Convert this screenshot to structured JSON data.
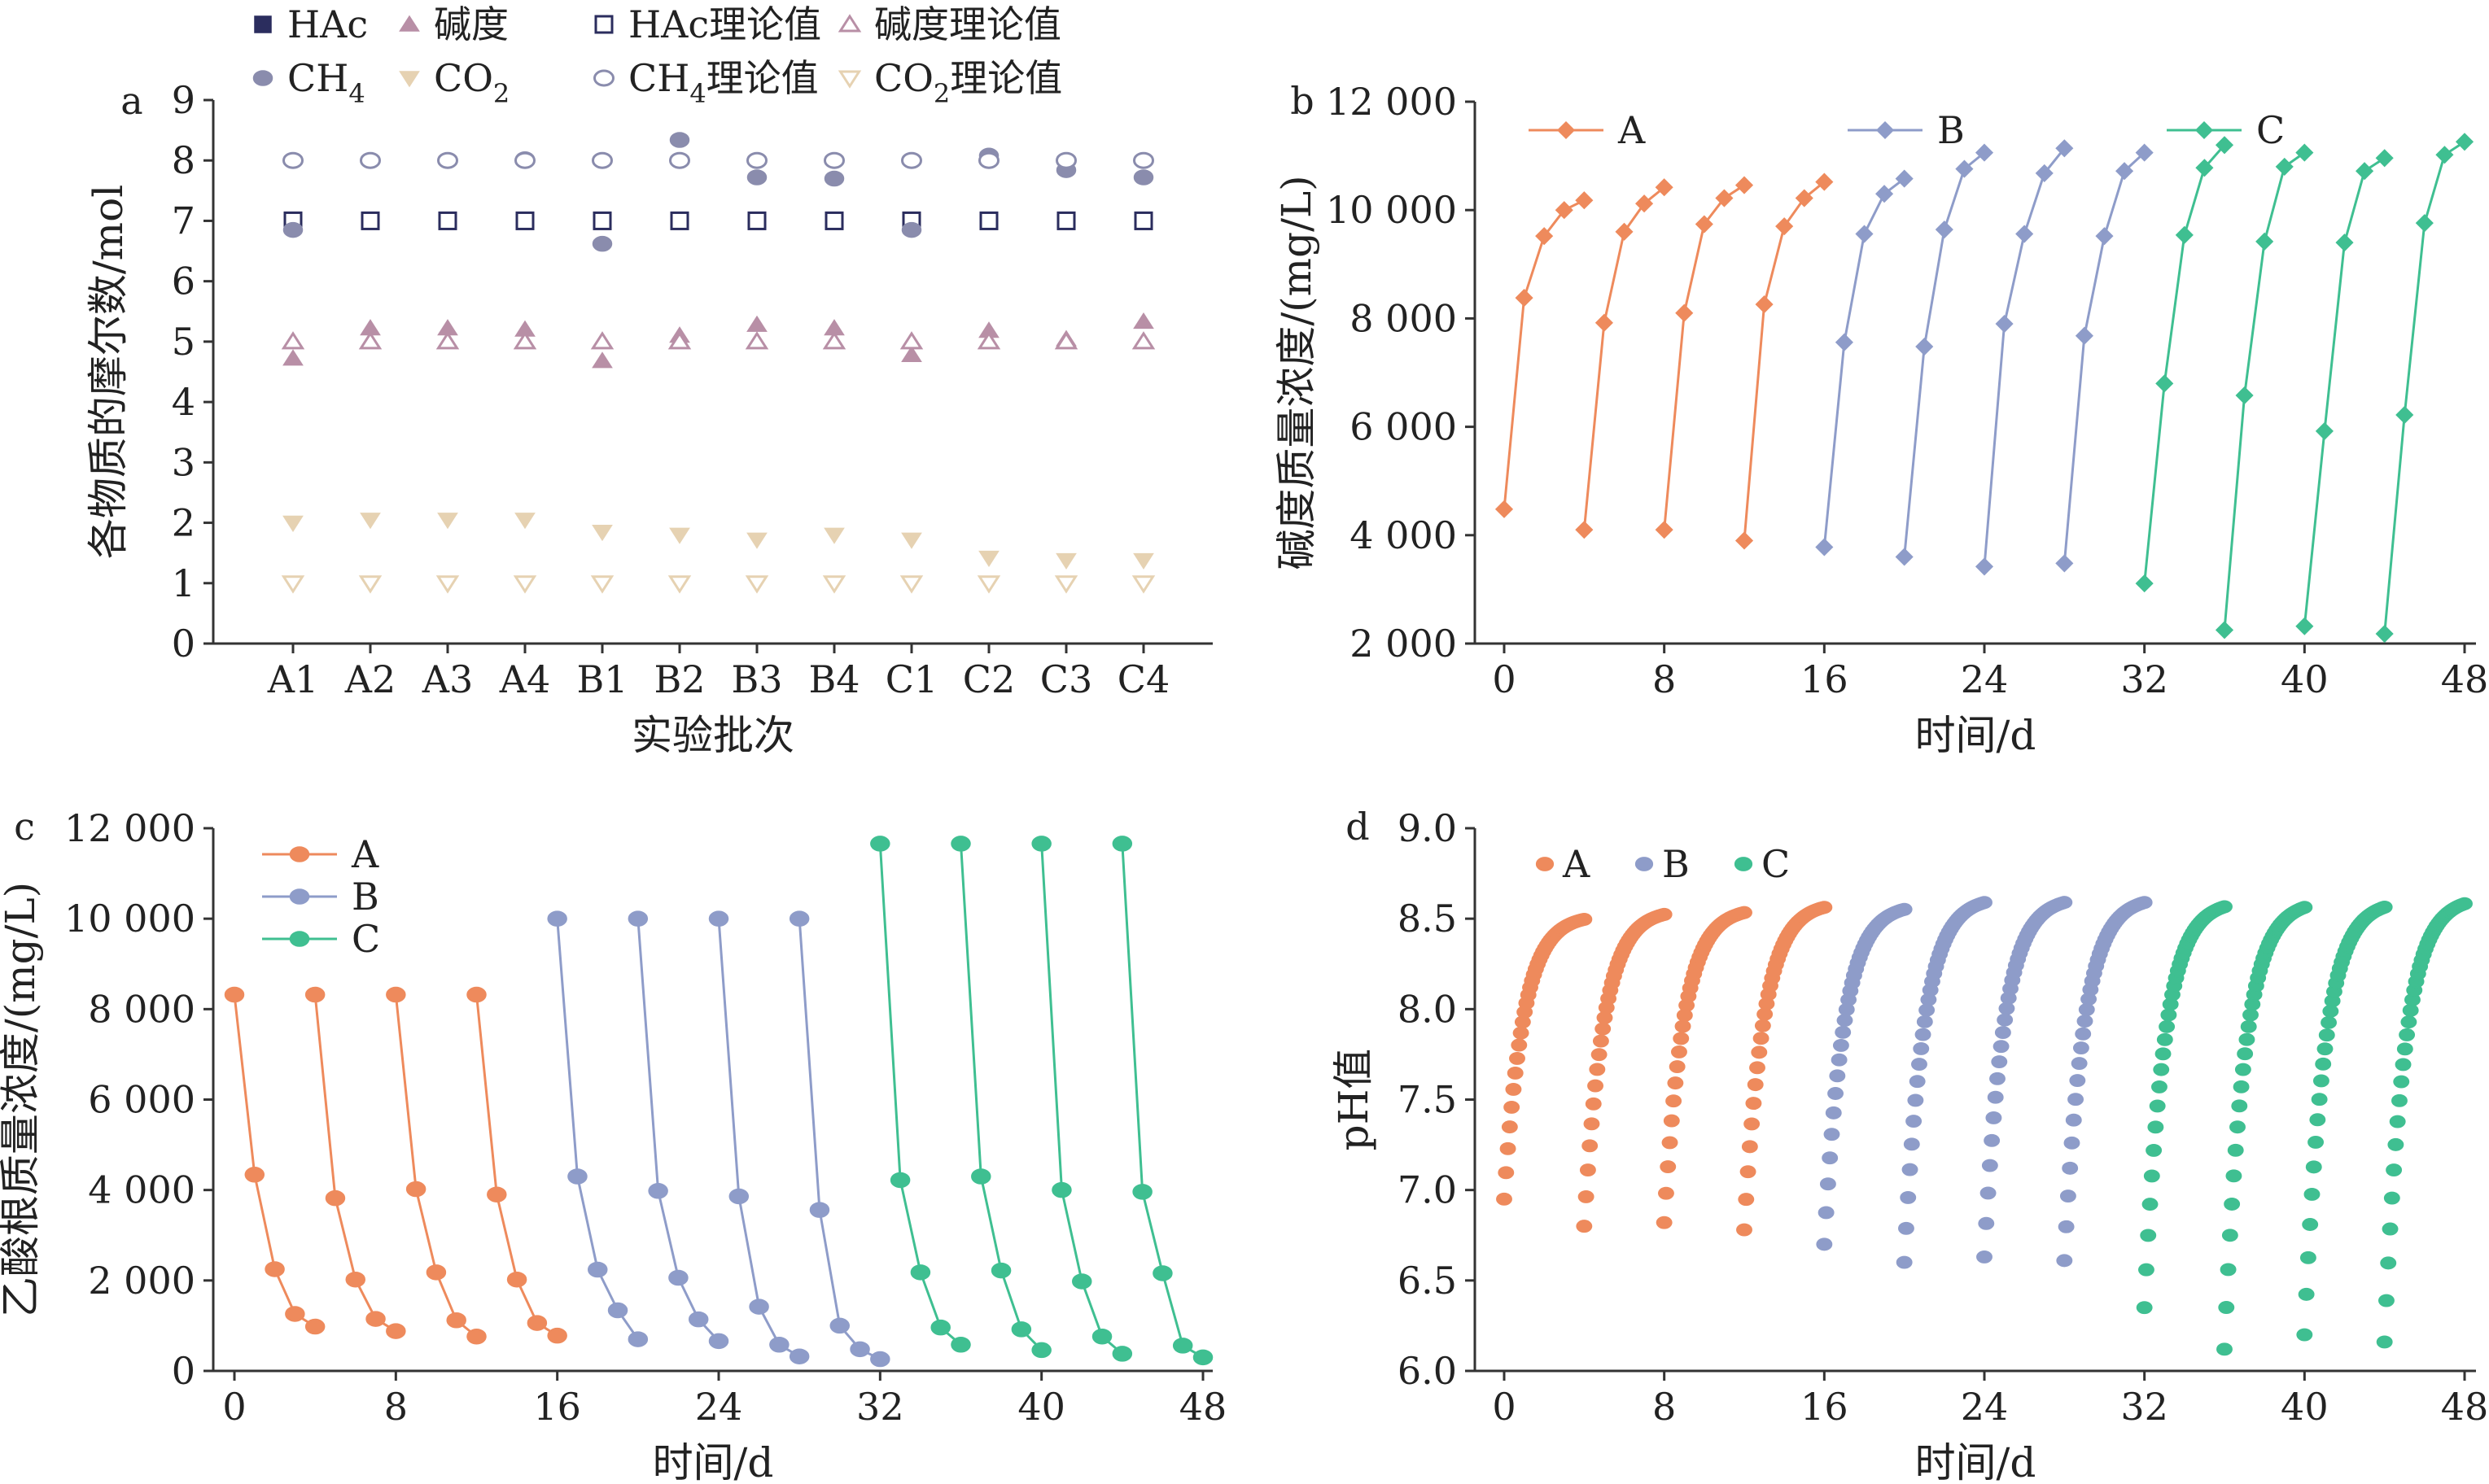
{
  "chart_data": [
    {
      "panel": "a",
      "type": "scatter",
      "title": "",
      "xlabel": "实验批次",
      "ylabel": "各物质的摩尔数/mol",
      "categories": [
        "A1",
        "A2",
        "A3",
        "A4",
        "B1",
        "B2",
        "B3",
        "B4",
        "C1",
        "C2",
        "C3",
        "C4"
      ],
      "ylim": [
        0,
        9
      ],
      "yticks": [
        0,
        1,
        2,
        3,
        4,
        5,
        6,
        7,
        8,
        9
      ],
      "legend_position": "top",
      "series": [
        {
          "name": "HAc",
          "marker": "square-filled",
          "color": "#2b2d5e",
          "values": [
            7,
            7,
            7,
            7,
            7,
            7,
            7,
            7,
            7,
            7,
            7,
            7
          ]
        },
        {
          "name": "碱度",
          "marker": "triangle-up-filled",
          "color": "#b88fa6",
          "values": [
            4.72,
            5.22,
            5.22,
            5.2,
            4.68,
            5.1,
            5.28,
            5.22,
            4.78,
            5.18,
            5.04,
            5.33
          ]
        },
        {
          "name": "HAc理论值",
          "marker": "square-open",
          "color": "#2b2d5e",
          "values": [
            7,
            7,
            7,
            7,
            7,
            7,
            7,
            7,
            7,
            7,
            7,
            7
          ]
        },
        {
          "name": "碱度理论值",
          "marker": "triangle-up-open",
          "color": "#b88fa6",
          "values": [
            5,
            5,
            5,
            5,
            5,
            5,
            5,
            5,
            5,
            5,
            5,
            5
          ]
        },
        {
          "name": "CH4",
          "marker": "circle-filled",
          "color": "#8a8cad",
          "values": [
            6.85,
            8.0,
            8.0,
            8.02,
            6.62,
            8.34,
            7.72,
            7.7,
            6.85,
            8.08,
            7.84,
            7.72
          ]
        },
        {
          "name": "CO2",
          "marker": "triangle-down-filled",
          "color": "#e6d2b2",
          "values": [
            2.0,
            2.05,
            2.05,
            2.05,
            1.85,
            1.8,
            1.72,
            1.8,
            1.72,
            1.42,
            1.38,
            1.38
          ]
        },
        {
          "name": "CH4理论值",
          "marker": "circle-open",
          "color": "#8a8cad",
          "values": [
            8,
            8,
            8,
            8,
            8,
            8,
            8,
            8,
            8,
            8,
            8,
            8
          ]
        },
        {
          "name": "CO2理论值",
          "marker": "triangle-down-open",
          "color": "#e6d2b2",
          "values": [
            1,
            1,
            1,
            1,
            1,
            1,
            1,
            1,
            1,
            1,
            1,
            1
          ]
        }
      ]
    },
    {
      "panel": "b",
      "type": "line",
      "title": "",
      "xlabel": "时间/d",
      "ylabel": "碱度质量浓度/(mg/L)",
      "xlim": [
        0,
        48
      ],
      "ylim": [
        2000,
        12000
      ],
      "xticks": [
        0,
        8,
        16,
        24,
        32,
        40,
        48
      ],
      "yticks": [
        2000,
        4000,
        6000,
        8000,
        10000,
        12000
      ],
      "ytick_labels": [
        "2 000",
        "4 000",
        "6 000",
        "8 000",
        "10 000",
        "12 000"
      ],
      "marker": "diamond",
      "legend_position": "top-left",
      "series": [
        {
          "name": "A",
          "color": "#ee8a5c",
          "segments": [
            [
              [
                0,
                4480
              ],
              [
                1,
                8380
              ],
              [
                2,
                9520
              ],
              [
                3,
                10000
              ],
              [
                4,
                10180
              ]
            ],
            [
              [
                4,
                4100
              ],
              [
                5,
                7920
              ],
              [
                6,
                9600
              ],
              [
                7,
                10120
              ],
              [
                8,
                10420
              ]
            ],
            [
              [
                8,
                4100
              ],
              [
                9,
                8100
              ],
              [
                10,
                9740
              ],
              [
                11,
                10220
              ],
              [
                12,
                10460
              ]
            ],
            [
              [
                12,
                3900
              ],
              [
                13,
                8260
              ],
              [
                14,
                9700
              ],
              [
                15,
                10220
              ],
              [
                16,
                10520
              ]
            ]
          ]
        },
        {
          "name": "B",
          "color": "#8e9cc9",
          "segments": [
            [
              [
                16,
                3780
              ],
              [
                17,
                7560
              ],
              [
                18,
                9560
              ],
              [
                19,
                10300
              ],
              [
                20,
                10580
              ]
            ],
            [
              [
                20,
                3600
              ],
              [
                21,
                7480
              ],
              [
                22,
                9640
              ],
              [
                23,
                10760
              ],
              [
                24,
                11060
              ]
            ],
            [
              [
                24,
                3420
              ],
              [
                25,
                7900
              ],
              [
                26,
                9560
              ],
              [
                27,
                10680
              ],
              [
                28,
                11140
              ]
            ],
            [
              [
                28,
                3480
              ],
              [
                29,
                7680
              ],
              [
                30,
                9520
              ],
              [
                31,
                10720
              ],
              [
                32,
                11060
              ]
            ]
          ]
        },
        {
          "name": "C",
          "color": "#3fbf91",
          "segments": [
            [
              [
                32,
                3110
              ],
              [
                33,
                6800
              ],
              [
                34,
                9540
              ],
              [
                35,
                10780
              ],
              [
                36,
                11200
              ]
            ],
            [
              [
                36,
                2250
              ],
              [
                37,
                6580
              ],
              [
                38,
                9420
              ],
              [
                39,
                10800
              ],
              [
                40,
                11060
              ]
            ],
            [
              [
                40,
                2320
              ],
              [
                41,
                5920
              ],
              [
                42,
                9400
              ],
              [
                43,
                10720
              ],
              [
                44,
                10960
              ]
            ],
            [
              [
                44,
                2180
              ],
              [
                45,
                6220
              ],
              [
                46,
                9760
              ],
              [
                47,
                11020
              ],
              [
                48,
                11260
              ]
            ]
          ]
        }
      ]
    },
    {
      "panel": "c",
      "type": "line",
      "title": "",
      "xlabel": "时间/d",
      "ylabel": "乙酸根质量浓度/(mg/L)",
      "xlim": [
        0,
        48
      ],
      "ylim": [
        0,
        12000
      ],
      "xticks": [
        0,
        8,
        16,
        24,
        32,
        40,
        48
      ],
      "yticks": [
        0,
        2000,
        4000,
        6000,
        8000,
        10000,
        12000
      ],
      "ytick_labels": [
        "0",
        "2 000",
        "4 000",
        "6 000",
        "8 000",
        "10 000",
        "12 000"
      ],
      "marker": "circle",
      "legend_position": "top-left",
      "series": [
        {
          "name": "A",
          "color": "#ee8a5c",
          "segments": [
            [
              [
                0,
                8320
              ],
              [
                1,
                4340
              ],
              [
                2,
                2250
              ],
              [
                3,
                1260
              ],
              [
                4,
                980
              ]
            ],
            [
              [
                4,
                8320
              ],
              [
                5,
                3820
              ],
              [
                6,
                2020
              ],
              [
                7,
                1150
              ],
              [
                8,
                880
              ]
            ],
            [
              [
                8,
                8320
              ],
              [
                9,
                4020
              ],
              [
                10,
                2180
              ],
              [
                11,
                1120
              ],
              [
                12,
                760
              ]
            ],
            [
              [
                12,
                8320
              ],
              [
                13,
                3900
              ],
              [
                14,
                2020
              ],
              [
                15,
                1060
              ],
              [
                16,
                780
              ]
            ]
          ]
        },
        {
          "name": "B",
          "color": "#8e9cc9",
          "segments": [
            [
              [
                16,
                10000
              ],
              [
                17,
                4300
              ],
              [
                18,
                2240
              ],
              [
                19,
                1340
              ],
              [
                20,
                700
              ]
            ],
            [
              [
                20,
                10000
              ],
              [
                21,
                3980
              ],
              [
                22,
                2060
              ],
              [
                23,
                1140
              ],
              [
                24,
                660
              ]
            ],
            [
              [
                24,
                10000
              ],
              [
                25,
                3860
              ],
              [
                26,
                1420
              ],
              [
                27,
                580
              ],
              [
                28,
                320
              ]
            ],
            [
              [
                28,
                10000
              ],
              [
                29,
                3560
              ],
              [
                30,
                1000
              ],
              [
                31,
                480
              ],
              [
                32,
                260
              ]
            ]
          ]
        },
        {
          "name": "C",
          "color": "#3fbf91",
          "segments": [
            [
              [
                32,
                11660
              ],
              [
                33,
                4220
              ],
              [
                34,
                2180
              ],
              [
                35,
                960
              ],
              [
                36,
                580
              ]
            ],
            [
              [
                36,
                11660
              ],
              [
                37,
                4300
              ],
              [
                38,
                2220
              ],
              [
                39,
                920
              ],
              [
                40,
                460
              ]
            ],
            [
              [
                40,
                11660
              ],
              [
                41,
                4000
              ],
              [
                42,
                1980
              ],
              [
                43,
                760
              ],
              [
                44,
                380
              ]
            ],
            [
              [
                44,
                11660
              ],
              [
                45,
                3960
              ],
              [
                46,
                2160
              ],
              [
                47,
                560
              ],
              [
                48,
                300
              ]
            ]
          ]
        }
      ]
    },
    {
      "panel": "d",
      "type": "scatter",
      "title": "",
      "xlabel": "时间/d",
      "ylabel": "pH值",
      "xlim": [
        0,
        48
      ],
      "ylim": [
        6.0,
        9.0
      ],
      "xticks": [
        0,
        8,
        16,
        24,
        32,
        40,
        48
      ],
      "yticks": [
        6.0,
        6.5,
        7.0,
        7.5,
        8.0,
        8.5,
        9.0
      ],
      "ytick_labels": [
        "6.0",
        "6.5",
        "7.0",
        "7.5",
        "8.0",
        "8.5",
        "9.0"
      ],
      "marker": "circle",
      "legend_position": "top-left",
      "series": [
        {
          "name": "A",
          "color": "#ee8a5c",
          "cycles": [
            {
              "t_start": 0,
              "t_end": 4,
              "ph_start": 6.95,
              "ph_end": 8.52
            },
            {
              "t_start": 4,
              "t_end": 8,
              "ph_start": 6.8,
              "ph_end": 8.55
            },
            {
              "t_start": 8,
              "t_end": 12,
              "ph_start": 6.82,
              "ph_end": 8.56
            },
            {
              "t_start": 12,
              "t_end": 16,
              "ph_start": 6.78,
              "ph_end": 8.59
            }
          ]
        },
        {
          "name": "B",
          "color": "#8e9cc9",
          "cycles": [
            {
              "t_start": 16,
              "t_end": 20,
              "ph_start": 6.7,
              "ph_end": 8.58
            },
            {
              "t_start": 20,
              "t_end": 24,
              "ph_start": 6.6,
              "ph_end": 8.62
            },
            {
              "t_start": 24,
              "t_end": 28,
              "ph_start": 6.63,
              "ph_end": 8.62
            },
            {
              "t_start": 28,
              "t_end": 32,
              "ph_start": 6.61,
              "ph_end": 8.62
            }
          ]
        },
        {
          "name": "C",
          "color": "#3fbf91",
          "cycles": [
            {
              "t_start": 32,
              "t_end": 36,
              "ph_start": 6.35,
              "ph_end": 8.6
            },
            {
              "t_start": 36,
              "t_end": 40,
              "ph_start": 6.12,
              "ph_end": 8.6
            },
            {
              "t_start": 40,
              "t_end": 44,
              "ph_start": 6.2,
              "ph_end": 8.6
            },
            {
              "t_start": 44,
              "t_end": 48,
              "ph_start": 6.16,
              "ph_end": 8.62
            }
          ]
        }
      ]
    }
  ]
}
